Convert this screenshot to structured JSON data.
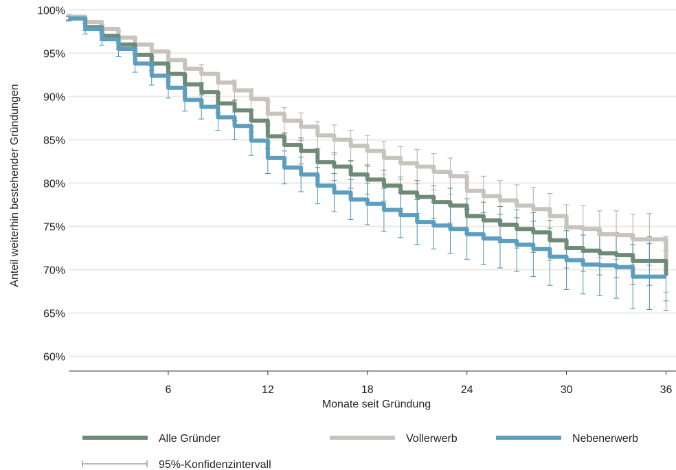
{
  "chart_data": {
    "type": "line",
    "title": "",
    "xlabel": "Monate seit Gründung",
    "ylabel": "Anteil weiterhin bestehender Gründungen",
    "xlim": [
      0,
      36.6
    ],
    "ylim": [
      58.3,
      100.5
    ],
    "x_ticks": [
      6,
      12,
      18,
      24,
      30,
      36
    ],
    "y_ticks": [
      60,
      65,
      70,
      75,
      80,
      85,
      90,
      95,
      100
    ],
    "y_tick_suffix": "%",
    "grid": "horizontal",
    "legend_position": "bottom",
    "x": [
      0,
      1,
      2,
      3,
      4,
      5,
      6,
      7,
      8,
      9,
      10,
      11,
      12,
      13,
      14,
      15,
      16,
      17,
      18,
      19,
      20,
      21,
      22,
      23,
      24,
      25,
      26,
      27,
      28,
      29,
      30,
      31,
      32,
      33,
      34,
      35,
      36
    ],
    "series": [
      {
        "name": "Alle Gründer",
        "color": "#6f8b78",
        "values": [
          99.0,
          98.0,
          97.0,
          96.0,
          94.8,
          93.8,
          92.6,
          91.4,
          90.5,
          89.2,
          88.4,
          87.2,
          85.4,
          84.4,
          83.7,
          82.4,
          81.9,
          81.0,
          80.4,
          79.7,
          78.9,
          78.4,
          77.8,
          77.4,
          76.2,
          75.7,
          75.2,
          74.7,
          74.3,
          73.4,
          72.5,
          72.2,
          71.9,
          71.7,
          71.0,
          71.0,
          69.3
        ],
        "ci_lower": [
          98.8,
          97.6,
          96.5,
          95.4,
          94.1,
          93.0,
          91.7,
          90.4,
          89.4,
          88.1,
          87.2,
          85.9,
          84.0,
          83.0,
          82.2,
          80.8,
          80.3,
          79.4,
          78.7,
          77.9,
          77.1,
          76.5,
          75.9,
          75.4,
          74.2,
          73.6,
          73.1,
          72.5,
          72.0,
          71.1,
          70.2,
          69.8,
          69.4,
          69.1,
          68.3,
          68.2,
          66.4
        ],
        "ci_upper": [
          99.2,
          98.4,
          97.5,
          96.6,
          95.5,
          94.6,
          93.5,
          92.4,
          91.6,
          90.3,
          89.6,
          88.5,
          86.8,
          85.8,
          85.2,
          84.0,
          83.5,
          82.6,
          82.1,
          81.5,
          80.7,
          80.3,
          79.7,
          79.4,
          78.2,
          77.8,
          77.3,
          76.9,
          76.6,
          75.7,
          74.8,
          74.6,
          74.4,
          74.3,
          73.7,
          73.8,
          72.2
        ]
      },
      {
        "name": "Vollerwerb",
        "color": "#c8c3bd",
        "values": [
          99.2,
          98.6,
          97.8,
          96.8,
          96.0,
          95.2,
          94.2,
          93.2,
          92.6,
          91.6,
          90.7,
          89.7,
          88.0,
          87.2,
          86.5,
          85.5,
          85.0,
          84.3,
          83.7,
          82.9,
          82.3,
          81.9,
          81.3,
          80.8,
          79.1,
          78.5,
          78.0,
          77.4,
          77.0,
          76.2,
          74.9,
          74.7,
          74.1,
          74.0,
          73.5,
          73.5,
          70.6
        ],
        "ci_lower": [
          98.9,
          98.2,
          97.3,
          96.1,
          95.2,
          94.3,
          93.3,
          92.2,
          91.5,
          90.5,
          89.5,
          88.5,
          86.6,
          85.7,
          84.9,
          83.9,
          83.3,
          82.5,
          81.9,
          81.0,
          80.4,
          79.9,
          79.2,
          78.7,
          76.9,
          76.2,
          75.7,
          75.0,
          74.5,
          73.6,
          72.3,
          72.0,
          71.4,
          71.2,
          70.6,
          70.5,
          67.4
        ],
        "ci_upper": [
          99.5,
          99.0,
          98.3,
          97.5,
          96.8,
          96.1,
          95.1,
          94.2,
          93.7,
          92.7,
          91.9,
          90.9,
          89.4,
          88.7,
          88.1,
          87.1,
          86.7,
          86.1,
          85.5,
          84.8,
          84.2,
          83.9,
          83.4,
          82.9,
          81.3,
          80.8,
          80.3,
          79.8,
          79.5,
          78.8,
          77.5,
          77.4,
          76.8,
          76.8,
          76.4,
          76.5,
          73.8
        ]
      },
      {
        "name": "Nebenerwerb",
        "color": "#5b9ec0",
        "values": [
          99.0,
          97.8,
          96.6,
          95.5,
          93.8,
          92.4,
          91.0,
          89.6,
          88.8,
          87.6,
          86.6,
          84.9,
          82.9,
          81.8,
          81.0,
          79.7,
          78.9,
          78.1,
          77.6,
          76.9,
          76.3,
          75.5,
          75.1,
          74.7,
          74.1,
          73.6,
          73.3,
          72.9,
          72.4,
          71.5,
          71.1,
          70.6,
          70.5,
          70.3,
          69.2,
          69.2,
          69.2
        ],
        "ci_lower": [
          98.7,
          97.2,
          95.9,
          94.6,
          92.8,
          91.3,
          89.8,
          88.3,
          87.4,
          86.1,
          85.0,
          83.2,
          81.1,
          79.9,
          79.0,
          77.6,
          76.7,
          75.8,
          75.2,
          74.4,
          73.7,
          72.9,
          72.4,
          71.9,
          71.2,
          70.6,
          70.2,
          69.8,
          69.2,
          68.2,
          67.7,
          67.2,
          67.0,
          66.7,
          65.5,
          65.4,
          65.3
        ],
        "ci_upper": [
          99.3,
          98.4,
          97.3,
          96.4,
          94.8,
          93.5,
          92.2,
          90.9,
          90.2,
          89.1,
          88.2,
          86.6,
          84.7,
          83.7,
          83.0,
          81.8,
          81.1,
          80.4,
          80.0,
          79.4,
          78.9,
          78.1,
          77.8,
          77.5,
          77.0,
          76.6,
          76.4,
          76.0,
          75.6,
          74.8,
          74.5,
          74.0,
          74.0,
          73.9,
          72.9,
          73.0,
          73.1
        ]
      }
    ],
    "ci_legend_label": "95%-Konfidenzintervall"
  }
}
